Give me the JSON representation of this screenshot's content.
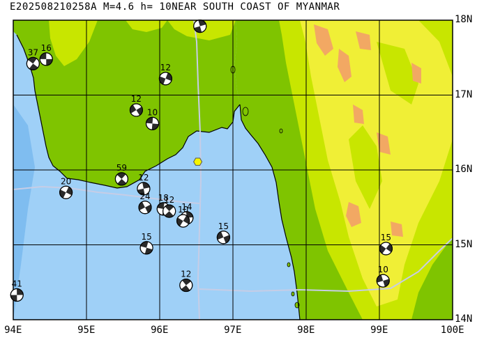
{
  "title": {
    "event_id": "E202508210258A",
    "magnitude": "M=4.6",
    "depth": "h= 10",
    "region": "NEAR SOUTH COAST OF MYANMAR"
  },
  "map": {
    "lon_range": [
      94,
      100
    ],
    "lat_range": [
      14,
      18
    ],
    "lat_labels": [
      "18N",
      "17N",
      "16N",
      "15N",
      "14N"
    ],
    "lon_labels": [
      "94E",
      "95E",
      "96E",
      "97E",
      "98E",
      "99E",
      "100E"
    ],
    "grid": true,
    "colors": {
      "sea": "#9fd0f7",
      "shelf": "#7fbdf0",
      "lowland": "#7fc400",
      "hills": "#c8e600",
      "highland": "#f0ef36",
      "peaks": "#f2a863",
      "border": "#c6cde6",
      "epicenter": "#f5f500"
    }
  },
  "epicenter": {
    "lon": 96.52,
    "lat": 16.11
  },
  "mechanisms": [
    {
      "label": "16",
      "lon": 94.45,
      "lat": 17.48
    },
    {
      "label": "37",
      "lon": 94.27,
      "lat": 17.42
    },
    {
      "label": "",
      "lon": 96.55,
      "lat": 17.92
    },
    {
      "label": "12",
      "lon": 96.08,
      "lat": 17.22
    },
    {
      "label": "12",
      "lon": 95.68,
      "lat": 16.8
    },
    {
      "label": "10",
      "lon": 95.9,
      "lat": 16.62
    },
    {
      "label": "59",
      "lon": 95.48,
      "lat": 15.88
    },
    {
      "label": "12",
      "lon": 95.78,
      "lat": 15.75
    },
    {
      "label": "20",
      "lon": 94.72,
      "lat": 15.7
    },
    {
      "label": "24",
      "lon": 95.8,
      "lat": 15.5
    },
    {
      "label": "18",
      "lon": 96.05,
      "lat": 15.48
    },
    {
      "label": "12",
      "lon": 96.13,
      "lat": 15.45
    },
    {
      "label": "14",
      "lon": 96.37,
      "lat": 15.36
    },
    {
      "label": "10",
      "lon": 96.32,
      "lat": 15.32
    },
    {
      "label": "15",
      "lon": 96.87,
      "lat": 15.1
    },
    {
      "label": "15",
      "lon": 95.82,
      "lat": 14.96
    },
    {
      "label": "12",
      "lon": 96.36,
      "lat": 14.46
    },
    {
      "label": "41",
      "lon": 94.05,
      "lat": 14.33
    },
    {
      "label": "15",
      "lon": 99.09,
      "lat": 14.95
    },
    {
      "label": "10",
      "lon": 99.05,
      "lat": 14.52
    }
  ]
}
